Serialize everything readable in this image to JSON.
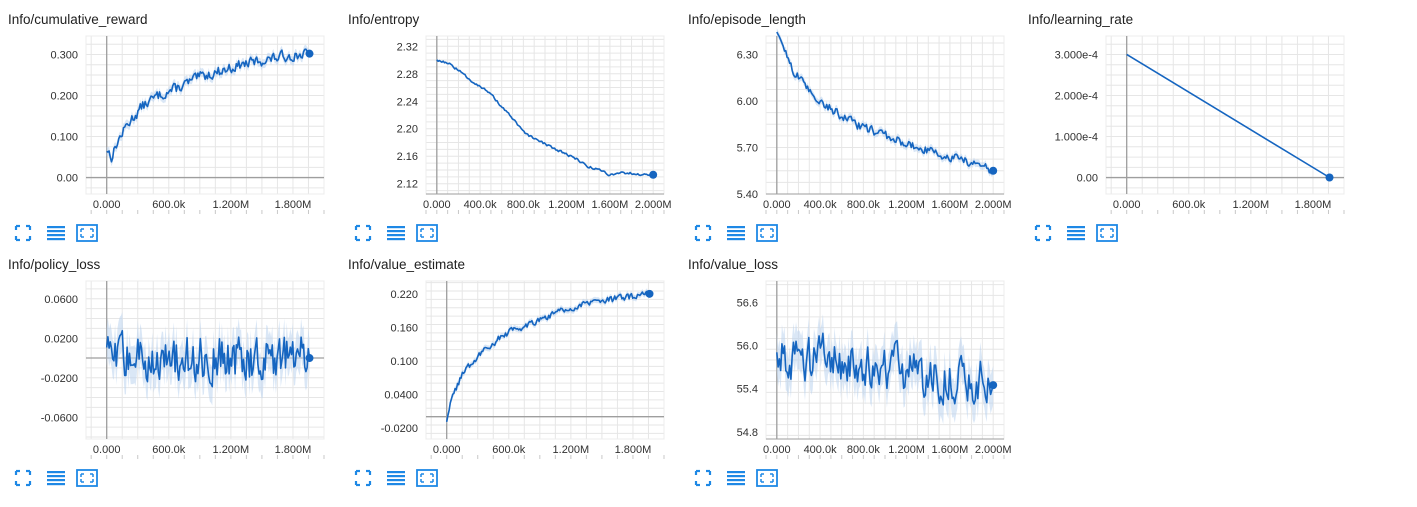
{
  "colors": {
    "line": "#1565c0",
    "band": "#bcd3ee",
    "grid": "#e6e6e6",
    "axis": "#9e9e9e",
    "icon": "#1e88e5"
  },
  "icons": {
    "fit": "fit-domain-icon",
    "log": "toggle-log-scale-icon",
    "expand": "expand-icon"
  },
  "cards": [
    {
      "title": "Info/cumulative_reward"
    },
    {
      "title": "Info/entropy"
    },
    {
      "title": "Info/episode_length"
    },
    {
      "title": "Info/learning_rate"
    },
    {
      "title": "Info/policy_loss"
    },
    {
      "title": "Info/value_estimate"
    },
    {
      "title": "Info/value_loss"
    }
  ],
  "chart_data": [
    {
      "type": "line",
      "title": "Info/cumulative_reward",
      "xlim": [
        -200000,
        2100000
      ],
      "ylim": [
        -0.04,
        0.345
      ],
      "xticks": [
        0,
        600000,
        1200000,
        1800000
      ],
      "xtick_labels": [
        "0.000",
        "600.0k",
        "1.200M",
        "1.800M"
      ],
      "yticks": [
        0,
        0.1,
        0.2,
        0.3
      ],
      "ytick_labels": [
        "0.00",
        "0.100",
        "0.200",
        "0.300"
      ],
      "series": [
        {
          "x": [
            0,
            50000,
            100000,
            200000,
            350000,
            500000,
            700000,
            900000,
            1100000,
            1300000,
            1500000,
            1700000,
            1900000,
            1960000
          ],
          "y": [
            0.07,
            0.05,
            0.085,
            0.13,
            0.175,
            0.2,
            0.22,
            0.245,
            0.26,
            0.275,
            0.285,
            0.295,
            0.3,
            0.302
          ]
        }
      ],
      "noise": 0.018,
      "grid": true
    },
    {
      "type": "line",
      "title": "Info/entropy",
      "xlim": [
        -100000,
        2100000
      ],
      "ylim": [
        2.105,
        2.335
      ],
      "xticks": [
        0,
        400000,
        800000,
        1200000,
        1600000,
        2000000
      ],
      "xtick_labels": [
        "0.000",
        "400.0k",
        "800.0k",
        "1.200M",
        "1.600M",
        "2.000M"
      ],
      "yticks": [
        2.12,
        2.16,
        2.2,
        2.24,
        2.28,
        2.32
      ],
      "ytick_labels": [
        "2.12",
        "2.16",
        "2.20",
        "2.24",
        "2.28",
        "2.32"
      ],
      "series": [
        {
          "x": [
            0,
            100000,
            200000,
            300000,
            400000,
            500000,
            600000,
            700000,
            800000,
            900000,
            1000000,
            1100000,
            1200000,
            1300000,
            1400000,
            1500000,
            1600000,
            1700000,
            1800000,
            1900000,
            2000000
          ],
          "y": [
            2.3,
            2.296,
            2.285,
            2.272,
            2.262,
            2.25,
            2.232,
            2.215,
            2.195,
            2.185,
            2.178,
            2.17,
            2.163,
            2.155,
            2.145,
            2.14,
            2.133,
            2.136,
            2.135,
            2.133,
            2.133
          ]
        }
      ],
      "noise": 0.0025,
      "grid": true
    },
    {
      "type": "line",
      "title": "Info/episode_length",
      "xlim": [
        -100000,
        2100000
      ],
      "ylim": [
        5.4,
        6.42
      ],
      "xticks": [
        0,
        400000,
        800000,
        1200000,
        1600000,
        2000000
      ],
      "xtick_labels": [
        "0.000",
        "400.0k",
        "800.0k",
        "1.200M",
        "1.600M",
        "2.000M"
      ],
      "yticks": [
        5.4,
        5.7,
        6.0,
        6.3
      ],
      "ytick_labels": [
        "5.40",
        "5.70",
        "6.00",
        "6.30"
      ],
      "series": [
        {
          "x": [
            0,
            50000,
            150000,
            300000,
            500000,
            700000,
            900000,
            1100000,
            1300000,
            1500000,
            1700000,
            1900000,
            2000000
          ],
          "y": [
            6.42,
            6.38,
            6.2,
            6.06,
            5.95,
            5.86,
            5.8,
            5.75,
            5.7,
            5.66,
            5.62,
            5.58,
            5.55
          ]
        }
      ],
      "noise": 0.04,
      "grid": true
    },
    {
      "type": "line",
      "title": "Info/learning_rate",
      "xlim": [
        -200000,
        2100000
      ],
      "ylim": [
        -4e-05,
        0.000345
      ],
      "xticks": [
        0,
        600000,
        1200000,
        1800000
      ],
      "xtick_labels": [
        "0.000",
        "600.0k",
        "1.200M",
        "1.800M"
      ],
      "yticks": [
        0,
        0.0001,
        0.0002,
        0.0003
      ],
      "ytick_labels": [
        "0.00",
        "1.000e-4",
        "2.000e-4",
        "3.000e-4"
      ],
      "series": [
        {
          "x": [
            0,
            1960000
          ],
          "y": [
            0.0003,
            2e-07
          ]
        }
      ],
      "noise": 0,
      "grid": true
    },
    {
      "type": "line",
      "title": "Info/policy_loss",
      "xlim": [
        -200000,
        2100000
      ],
      "ylim": [
        -0.082,
        0.078
      ],
      "xticks": [
        0,
        600000,
        1200000,
        1800000
      ],
      "xtick_labels": [
        "0.000",
        "600.0k",
        "1.200M",
        "1.800M"
      ],
      "yticks": [
        -0.06,
        -0.02,
        0.02,
        0.06
      ],
      "ytick_labels": [
        "-0.0600",
        "-0.0200",
        "0.0200",
        "0.0600"
      ],
      "series": [
        {
          "x": [
            0,
            1960000
          ],
          "y": [
            0.0,
            0.0
          ]
        }
      ],
      "noise": 0.032,
      "grid": true
    },
    {
      "type": "line",
      "title": "Info/value_estimate",
      "xlim": [
        -200000,
        2100000
      ],
      "ylim": [
        -0.04,
        0.243
      ],
      "xticks": [
        0,
        600000,
        1200000,
        1800000
      ],
      "xtick_labels": [
        "0.000",
        "600.0k",
        "1.200M",
        "1.800M"
      ],
      "yticks": [
        -0.02,
        0.04,
        0.1,
        0.16,
        0.22
      ],
      "ytick_labels": [
        "-0.0200",
        "0.0400",
        "0.100",
        "0.160",
        "0.220"
      ],
      "series": [
        {
          "x": [
            0,
            50000,
            150000,
            300000,
            500000,
            700000,
            900000,
            1100000,
            1300000,
            1500000,
            1700000,
            1900000,
            1960000
          ],
          "y": [
            -0.005,
            0.03,
            0.075,
            0.11,
            0.14,
            0.16,
            0.175,
            0.19,
            0.2,
            0.207,
            0.213,
            0.218,
            0.22
          ]
        }
      ],
      "noise": 0.009,
      "grid": true
    },
    {
      "type": "line",
      "title": "Info/value_loss",
      "xlim": [
        -100000,
        2100000
      ],
      "ylim": [
        54.7,
        56.9
      ],
      "xticks": [
        0,
        400000,
        800000,
        1200000,
        1600000,
        2000000
      ],
      "xtick_labels": [
        "0.000",
        "400.0k",
        "800.0k",
        "1.200M",
        "1.600M",
        "2.000M"
      ],
      "yticks": [
        54.8,
        55.4,
        56.0,
        56.6
      ],
      "ytick_labels": [
        "54.8",
        "55.4",
        "56.0",
        "56.6"
      ],
      "series": [
        {
          "x": [
            0,
            500000,
            1000000,
            1500000,
            2000000
          ],
          "y": [
            55.9,
            55.8,
            55.7,
            55.55,
            55.45
          ]
        }
      ],
      "noise": 0.45,
      "grid": true
    }
  ]
}
